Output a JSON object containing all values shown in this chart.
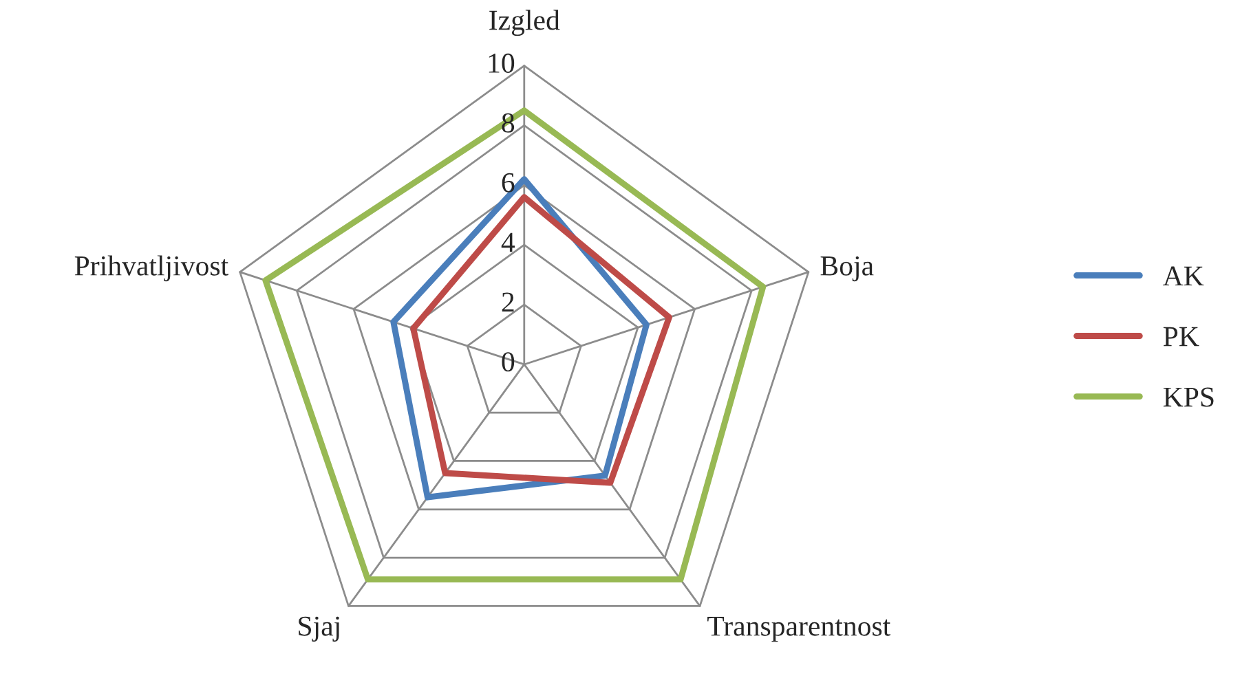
{
  "chart_data": {
    "type": "radar",
    "categories": [
      "Izgled",
      "Boja",
      "Transparentnost",
      "Sjaj",
      "Prihvatljivost"
    ],
    "series": [
      {
        "name": "AK",
        "color": "#4a7ebb",
        "values": [
          6.2,
          4.3,
          4.6,
          5.5,
          4.6
        ]
      },
      {
        "name": "PK",
        "color": "#be4b48",
        "values": [
          5.6,
          5.1,
          4.9,
          4.5,
          3.9
        ]
      },
      {
        "name": "KPS",
        "color": "#98b954",
        "values": [
          8.5,
          8.4,
          8.9,
          8.9,
          9.1
        ]
      }
    ],
    "ylim": [
      0,
      10
    ],
    "yticks": [
      0,
      2,
      4,
      6,
      8,
      10
    ],
    "grid": true,
    "legend": "right",
    "marker": "none",
    "line_style": "solid"
  }
}
